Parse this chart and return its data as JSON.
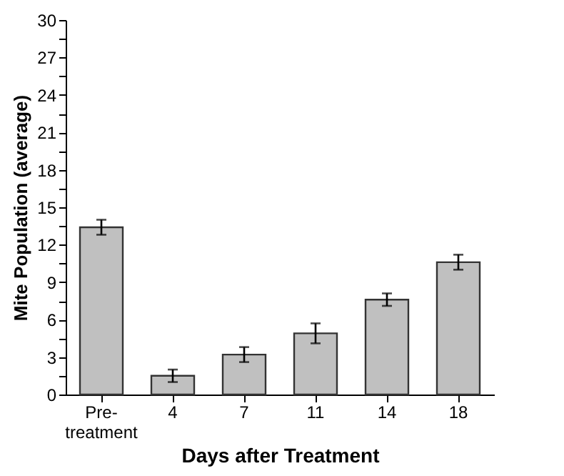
{
  "chart_data": {
    "type": "bar",
    "xlabel": "Days after Treatment",
    "ylabel": "Mite Population (average)",
    "categories": [
      "Pre-treatment",
      "4",
      "7",
      "11",
      "14",
      "18"
    ],
    "values": [
      13.4,
      1.5,
      3.2,
      4.9,
      7.6,
      10.6
    ],
    "errors": [
      0.6,
      0.5,
      0.6,
      0.8,
      0.5,
      0.6
    ],
    "color": "#c0c0c0",
    "ylim": [
      0,
      30
    ],
    "yticks": [
      0,
      {
        "value": 1.5,
        "label": null
      },
      3,
      {
        "value": 4.5,
        "label": null
      },
      6,
      {
        "value": 7.5,
        "label": null
      },
      9,
      {
        "value": 10.5,
        "label": null
      },
      12,
      {
        "value": 13.5,
        "label": null
      },
      15,
      {
        "value": 16.5,
        "label": null
      },
      18,
      {
        "value": 19.5,
        "label": null
      },
      21,
      {
        "value": 22.5,
        "label": null
      },
      24,
      {
        "value": 25.5,
        "label": null
      },
      27,
      {
        "value": 28.5,
        "label": null
      },
      30
    ],
    "grid": false
  }
}
